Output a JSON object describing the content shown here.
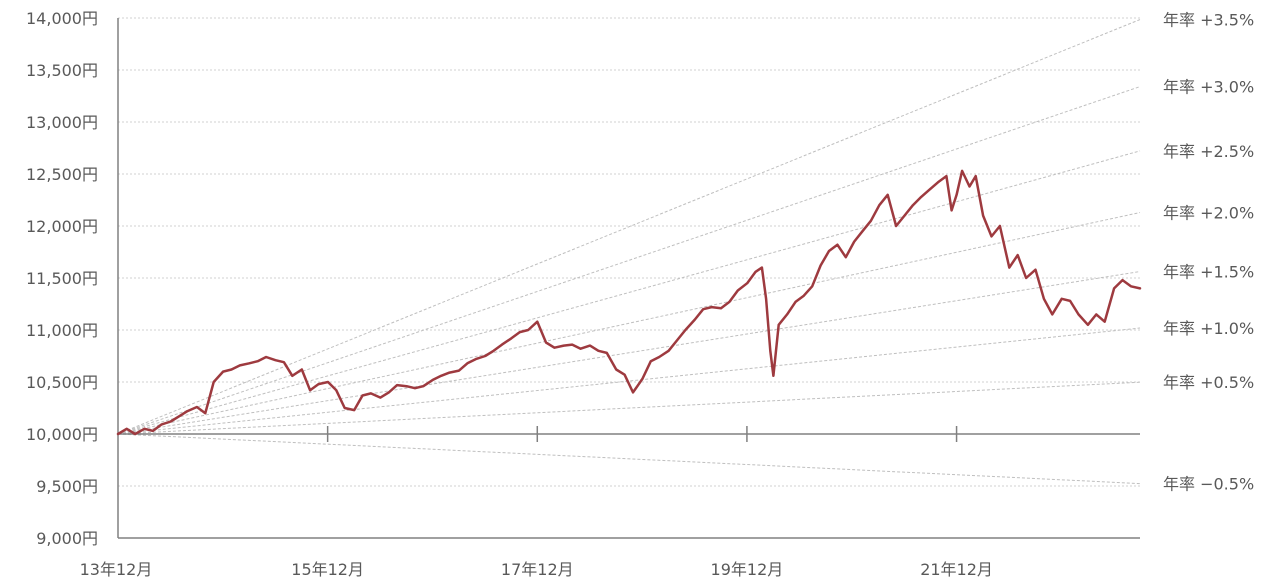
{
  "chart_data": {
    "type": "line",
    "y_unit": "円",
    "ylim": [
      9000,
      14000
    ],
    "y_ticks": [
      9000,
      9500,
      10000,
      10500,
      11000,
      11500,
      12000,
      12500,
      13000,
      13500,
      14000
    ],
    "y_tick_labels": [
      "9,000円",
      "9,500円",
      "10,000円",
      "10,500円",
      "11,000円",
      "11,500円",
      "12,000円",
      "12,500円",
      "13,000円",
      "13,500円",
      "14,000円"
    ],
    "xlim": [
      2013.917,
      2023.667
    ],
    "x_ticks": [
      2013.917,
      2015.917,
      2017.917,
      2019.917,
      2021.917
    ],
    "x_tick_labels": [
      "13年12月",
      "15年12月",
      "17年12月",
      "19年12月",
      "21年12月"
    ],
    "baseline": 10000,
    "grid": true,
    "series": [
      {
        "color": "#9e3a3f",
        "points": [
          [
            2013.917,
            10000
          ],
          [
            2014.0,
            10050
          ],
          [
            2014.08,
            10000
          ],
          [
            2014.17,
            10050
          ],
          [
            2014.25,
            10030
          ],
          [
            2014.33,
            10090
          ],
          [
            2014.42,
            10120
          ],
          [
            2014.5,
            10170
          ],
          [
            2014.58,
            10220
          ],
          [
            2014.67,
            10260
          ],
          [
            2014.75,
            10200
          ],
          [
            2014.83,
            10500
          ],
          [
            2014.92,
            10600
          ],
          [
            2015.0,
            10620
          ],
          [
            2015.08,
            10660
          ],
          [
            2015.17,
            10680
          ],
          [
            2015.25,
            10700
          ],
          [
            2015.33,
            10740
          ],
          [
            2015.42,
            10710
          ],
          [
            2015.5,
            10690
          ],
          [
            2015.58,
            10560
          ],
          [
            2015.67,
            10620
          ],
          [
            2015.75,
            10420
          ],
          [
            2015.83,
            10480
          ],
          [
            2015.92,
            10500
          ],
          [
            2016.0,
            10420
          ],
          [
            2016.08,
            10250
          ],
          [
            2016.17,
            10230
          ],
          [
            2016.25,
            10370
          ],
          [
            2016.33,
            10390
          ],
          [
            2016.42,
            10350
          ],
          [
            2016.5,
            10400
          ],
          [
            2016.58,
            10470
          ],
          [
            2016.67,
            10460
          ],
          [
            2016.75,
            10440
          ],
          [
            2016.83,
            10460
          ],
          [
            2016.92,
            10520
          ],
          [
            2017.0,
            10560
          ],
          [
            2017.08,
            10590
          ],
          [
            2017.17,
            10610
          ],
          [
            2017.25,
            10680
          ],
          [
            2017.33,
            10720
          ],
          [
            2017.42,
            10750
          ],
          [
            2017.5,
            10800
          ],
          [
            2017.58,
            10860
          ],
          [
            2017.67,
            10920
          ],
          [
            2017.75,
            10980
          ],
          [
            2017.83,
            11000
          ],
          [
            2017.917,
            11080
          ],
          [
            2018.0,
            10880
          ],
          [
            2018.08,
            10830
          ],
          [
            2018.17,
            10850
          ],
          [
            2018.25,
            10860
          ],
          [
            2018.33,
            10820
          ],
          [
            2018.42,
            10850
          ],
          [
            2018.5,
            10800
          ],
          [
            2018.58,
            10780
          ],
          [
            2018.67,
            10620
          ],
          [
            2018.75,
            10570
          ],
          [
            2018.83,
            10400
          ],
          [
            2018.92,
            10530
          ],
          [
            2019.0,
            10700
          ],
          [
            2019.08,
            10740
          ],
          [
            2019.17,
            10800
          ],
          [
            2019.25,
            10900
          ],
          [
            2019.33,
            11000
          ],
          [
            2019.42,
            11100
          ],
          [
            2019.5,
            11200
          ],
          [
            2019.58,
            11220
          ],
          [
            2019.67,
            11210
          ],
          [
            2019.75,
            11270
          ],
          [
            2019.83,
            11380
          ],
          [
            2019.92,
            11450
          ],
          [
            2020.0,
            11560
          ],
          [
            2020.06,
            11600
          ],
          [
            2020.1,
            11300
          ],
          [
            2020.14,
            10800
          ],
          [
            2020.17,
            10560
          ],
          [
            2020.22,
            11050
          ],
          [
            2020.3,
            11150
          ],
          [
            2020.38,
            11270
          ],
          [
            2020.46,
            11330
          ],
          [
            2020.54,
            11420
          ],
          [
            2020.62,
            11620
          ],
          [
            2020.7,
            11760
          ],
          [
            2020.78,
            11820
          ],
          [
            2020.86,
            11700
          ],
          [
            2020.94,
            11850
          ],
          [
            2021.02,
            11950
          ],
          [
            2021.1,
            12050
          ],
          [
            2021.18,
            12200
          ],
          [
            2021.26,
            12300
          ],
          [
            2021.34,
            12000
          ],
          [
            2021.42,
            12100
          ],
          [
            2021.5,
            12200
          ],
          [
            2021.58,
            12280
          ],
          [
            2021.66,
            12350
          ],
          [
            2021.74,
            12420
          ],
          [
            2021.82,
            12480
          ],
          [
            2021.87,
            12150
          ],
          [
            2021.917,
            12300
          ],
          [
            2021.97,
            12530
          ],
          [
            2022.04,
            12380
          ],
          [
            2022.1,
            12480
          ],
          [
            2022.17,
            12100
          ],
          [
            2022.25,
            11900
          ],
          [
            2022.33,
            12000
          ],
          [
            2022.42,
            11600
          ],
          [
            2022.5,
            11720
          ],
          [
            2022.58,
            11500
          ],
          [
            2022.67,
            11580
          ],
          [
            2022.75,
            11300
          ],
          [
            2022.83,
            11150
          ],
          [
            2022.92,
            11300
          ],
          [
            2023.0,
            11280
          ],
          [
            2023.08,
            11150
          ],
          [
            2023.17,
            11050
          ],
          [
            2023.25,
            11150
          ],
          [
            2023.33,
            11080
          ],
          [
            2023.42,
            11400
          ],
          [
            2023.5,
            11480
          ],
          [
            2023.58,
            11420
          ],
          [
            2023.667,
            11400
          ]
        ]
      }
    ],
    "growth_lines": [
      {
        "rate": 3.5,
        "label": "年率 +3.5%"
      },
      {
        "rate": 3.0,
        "label": "年率 +3.0%"
      },
      {
        "rate": 2.5,
        "label": "年率 +2.5%"
      },
      {
        "rate": 2.0,
        "label": "年率 +2.0%"
      },
      {
        "rate": 1.5,
        "label": "年率 +1.5%"
      },
      {
        "rate": 1.0,
        "label": "年率 +1.0%"
      },
      {
        "rate": 0.5,
        "label": "年率 +0.5%"
      },
      {
        "rate": -0.5,
        "label": "年率 −0.5%"
      }
    ],
    "growth_line_color": "#bfbfbf",
    "axis_color": "#808080",
    "grid_color": "#d0d0d0"
  }
}
